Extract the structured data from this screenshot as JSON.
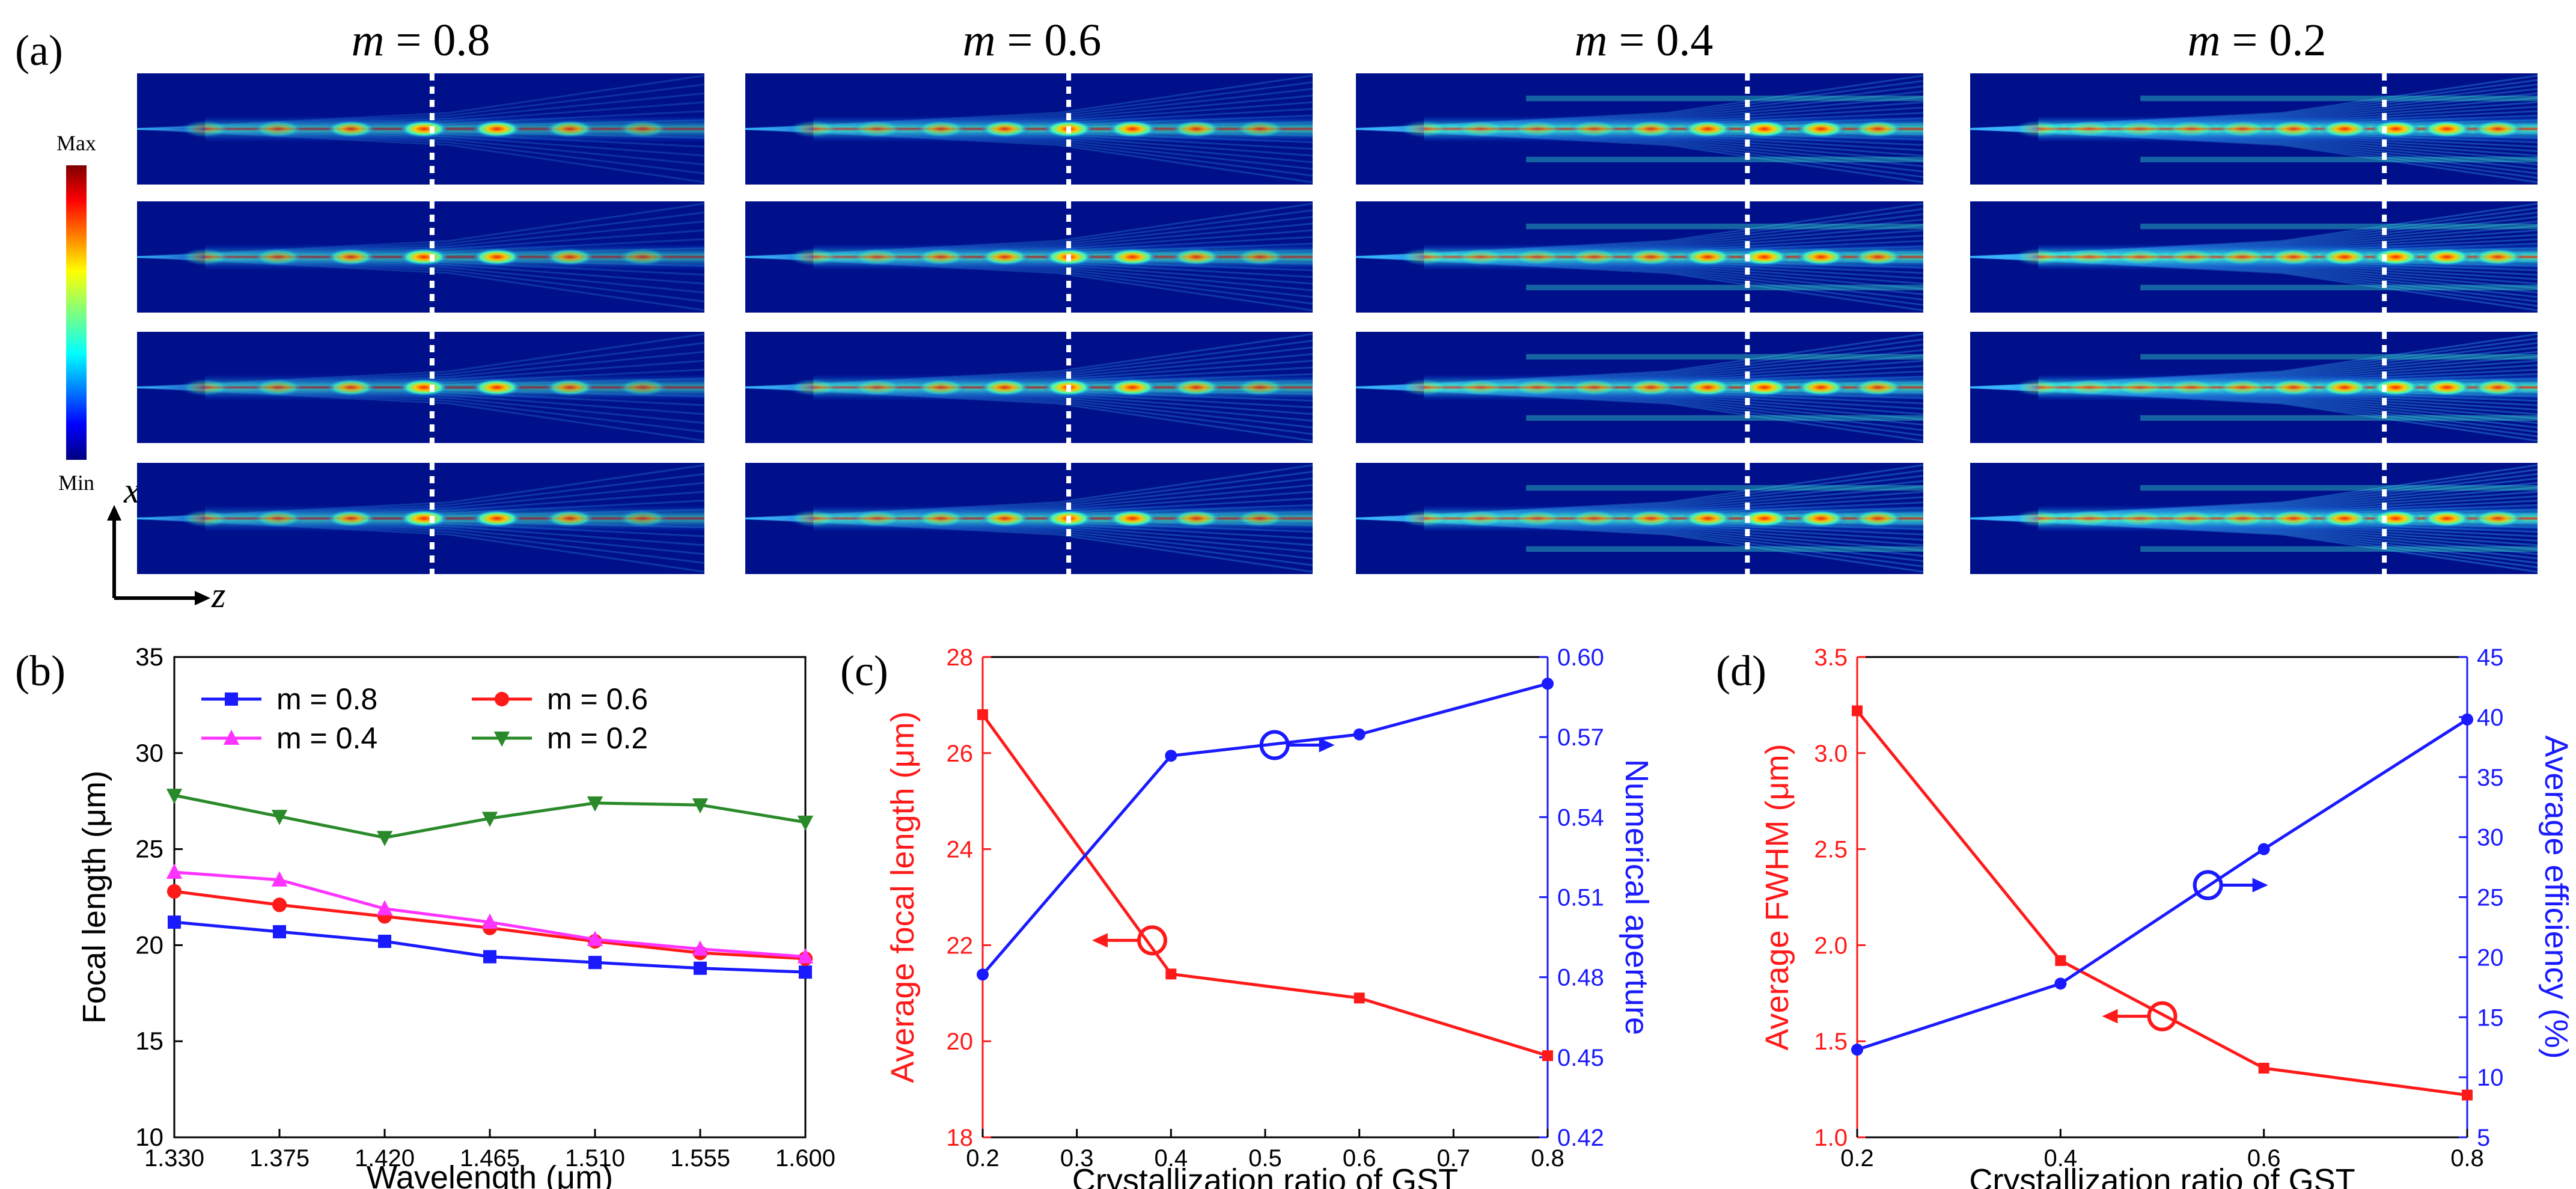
{
  "panel_a": {
    "label": "(a)",
    "columns": [
      {
        "title_var": "m",
        "title_val": "= 0.8"
      },
      {
        "title_var": "m",
        "title_val": "= 0.6"
      },
      {
        "title_var": "m",
        "title_val": "= 0.4"
      },
      {
        "title_var": "m",
        "title_val": "= 0.2"
      }
    ],
    "rows": 4,
    "colorbar": {
      "max": "Max",
      "min": "Min"
    },
    "axis": {
      "x": "x",
      "z": "z"
    },
    "dashed_line_color": "#ffffff"
  },
  "colors": {
    "blue": "#1a1aff",
    "red": "#ff1a1a",
    "magenta": "#ff33ff",
    "green": "#2a8a2a"
  },
  "chart_data": [
    {
      "id": "b",
      "label": "(b)",
      "type": "line",
      "title": "",
      "xlabel": "Wavelength (μm)",
      "ylabel": "Focal length (μm)",
      "x": [
        1.33,
        1.375,
        1.42,
        1.465,
        1.51,
        1.555,
        1.6
      ],
      "xtick_labels": [
        "1.330",
        "1.375",
        "1.420",
        "1.465",
        "1.510",
        "1.555",
        "1.600"
      ],
      "xlim": [
        1.33,
        1.6
      ],
      "ylim": [
        10,
        35
      ],
      "yticks": [
        10,
        15,
        20,
        25,
        30,
        35
      ],
      "legend": "top",
      "series": [
        {
          "name": "m = 0.8",
          "color": "#1a1aff",
          "marker": "square",
          "values": [
            21.2,
            20.7,
            20.2,
            19.4,
            19.1,
            18.8,
            18.6
          ]
        },
        {
          "name": "m = 0.6",
          "color": "#ff1a1a",
          "marker": "circle",
          "values": [
            22.8,
            22.1,
            21.5,
            20.9,
            20.2,
            19.6,
            19.3
          ]
        },
        {
          "name": "m = 0.4",
          "color": "#ff33ff",
          "marker": "triangle-up",
          "values": [
            23.8,
            23.4,
            21.9,
            21.2,
            20.3,
            19.8,
            19.4
          ]
        },
        {
          "name": "m = 0.2",
          "color": "#2a8a2a",
          "marker": "triangle-down",
          "values": [
            27.8,
            26.7,
            25.6,
            26.6,
            27.4,
            27.3,
            26.4
          ]
        }
      ]
    },
    {
      "id": "c",
      "label": "(c)",
      "type": "line",
      "xlabel": "Crystallization ratio of GST",
      "x": [
        0.2,
        0.4,
        0.6,
        0.8
      ],
      "xlim": [
        0.2,
        0.8
      ],
      "xticks": [
        0.2,
        0.3,
        0.4,
        0.5,
        0.6,
        0.7,
        0.8
      ],
      "xtick_labels": [
        "0.2",
        "0.3",
        "0.4",
        "0.5",
        "0.6",
        "0.7",
        "0.8"
      ],
      "left": {
        "ylabel": "Average focal length (μm)",
        "ylim": [
          18,
          28
        ],
        "yticks": [
          18,
          20,
          22,
          24,
          26,
          28
        ],
        "ytick_labels": [
          "18",
          "20",
          "22",
          "24",
          "26",
          "28"
        ],
        "color": "#ff1a1a",
        "values": [
          26.8,
          21.4,
          20.9,
          19.7
        ]
      },
      "right": {
        "ylabel": "Numerical aperture",
        "ylim": [
          0.42,
          0.6
        ],
        "yticks": [
          0.42,
          0.45,
          0.48,
          0.51,
          0.54,
          0.57,
          0.6
        ],
        "ytick_labels": [
          "0.42",
          "0.45",
          "0.48",
          "0.51",
          "0.54",
          "0.57",
          "0.60"
        ],
        "color": "#1a1aff",
        "values": [
          0.481,
          0.563,
          0.571,
          0.59
        ]
      },
      "annotations": [
        {
          "axis": "left",
          "x": 0.38,
          "y": 22.1,
          "arrow": "left"
        },
        {
          "axis": "right",
          "x": 0.51,
          "y": 0.567,
          "arrow": "right"
        }
      ]
    },
    {
      "id": "d",
      "label": "(d)",
      "type": "line",
      "xlabel": "Crystallization ratio of GST",
      "x": [
        0.2,
        0.4,
        0.6,
        0.8
      ],
      "xlim": [
        0.2,
        0.8
      ],
      "xticks": [
        0.2,
        0.4,
        0.6,
        0.8
      ],
      "xtick_labels": [
        "0.2",
        "0.4",
        "0.6",
        "0.8"
      ],
      "left": {
        "ylabel": "Average FWHM (μm)",
        "ylim": [
          1.0,
          3.5
        ],
        "yticks": [
          1.0,
          1.5,
          2.0,
          2.5,
          3.0,
          3.5
        ],
        "ytick_labels": [
          "1.0",
          "1.5",
          "2.0",
          "2.5",
          "3.0",
          "3.5"
        ],
        "color": "#ff1a1a",
        "values": [
          3.22,
          1.92,
          1.36,
          1.22
        ]
      },
      "right": {
        "ylabel": "Average efficiency (%)",
        "ylim": [
          5,
          45
        ],
        "yticks": [
          5,
          10,
          15,
          20,
          25,
          30,
          35,
          40,
          45
        ],
        "ytick_labels": [
          "5",
          "10",
          "15",
          "20",
          "25",
          "30",
          "35",
          "40",
          "45"
        ],
        "color": "#1a1aff",
        "values": [
          12.3,
          17.8,
          29.0,
          39.8
        ]
      },
      "annotations": [
        {
          "axis": "left",
          "x": 0.5,
          "y": 1.63,
          "arrow": "left"
        },
        {
          "axis": "right",
          "x": 0.545,
          "y": 26.0,
          "arrow": "right"
        }
      ]
    }
  ]
}
